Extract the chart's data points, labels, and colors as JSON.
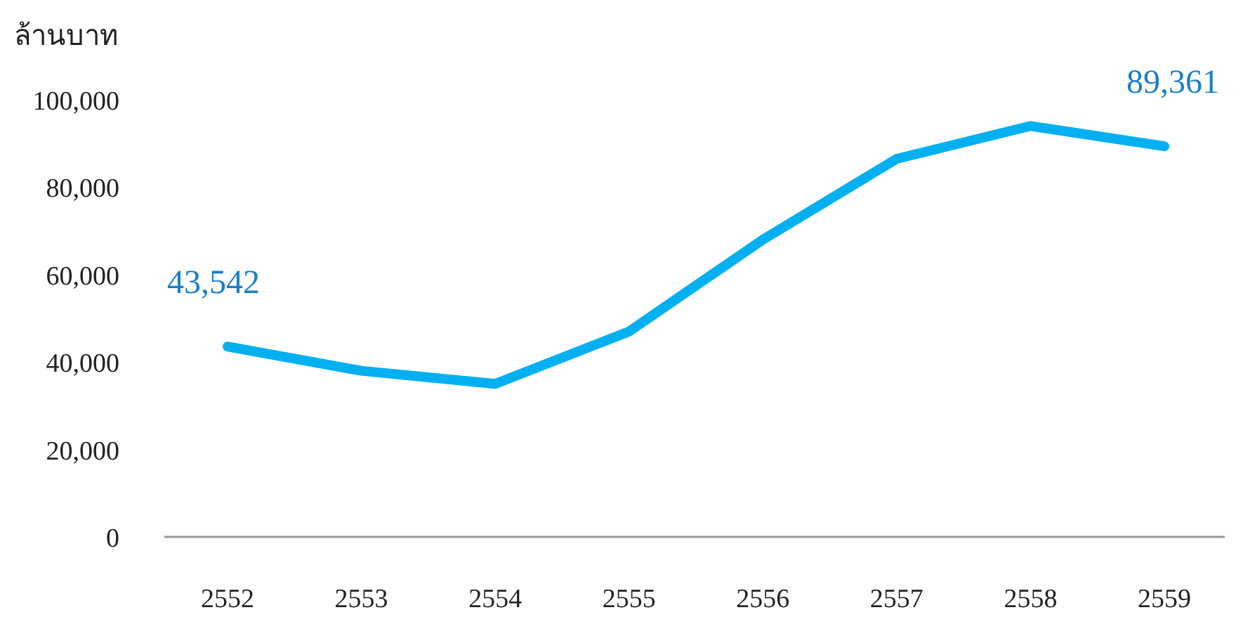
{
  "chart_data": {
    "type": "line",
    "ylabel": "ล้านบาท",
    "categories": [
      "2552",
      "2553",
      "2554",
      "2555",
      "2556",
      "2557",
      "2558",
      "2559"
    ],
    "series": [
      {
        "color": "#00b0f0",
        "values": [
          43542,
          38000,
          35000,
          47000,
          68000,
          86500,
          94000,
          89361
        ],
        "value_labels": [
          "43,542",
          null,
          null,
          null,
          null,
          null,
          null,
          "89,361"
        ]
      }
    ],
    "ylim": [
      0,
      100000
    ],
    "yticks": [
      {
        "value": 0,
        "label": "0"
      },
      {
        "value": 20000,
        "label": "20,000"
      },
      {
        "value": 40000,
        "label": "40,000"
      },
      {
        "value": 60000,
        "label": "60,000"
      },
      {
        "value": 80000,
        "label": "80,000"
      },
      {
        "value": 100000,
        "label": "100,000"
      }
    ],
    "grid": false,
    "marker": "none",
    "line_style": "solid"
  }
}
